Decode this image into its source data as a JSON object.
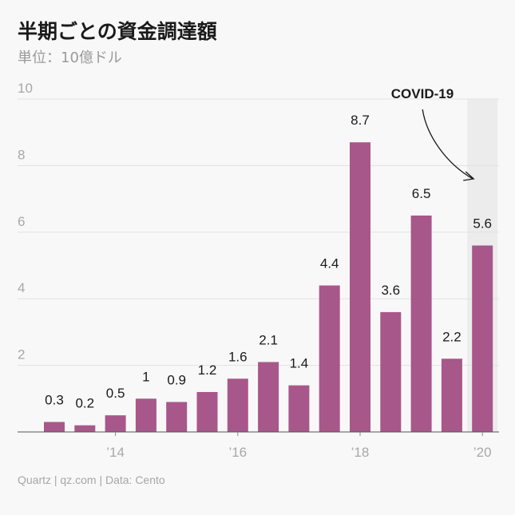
{
  "chart_data": {
    "type": "bar",
    "title": "半期ごとの資金調達額",
    "subtitle": "単位：10億ドル",
    "source": "Quartz | qz.com | Data: Cento",
    "ylim": [
      0,
      10
    ],
    "yticks": [
      2,
      4,
      6,
      8,
      10
    ],
    "grid": true,
    "values": [
      0.3,
      0.2,
      0.5,
      1.0,
      0.9,
      1.2,
      1.6,
      2.1,
      1.4,
      4.4,
      8.7,
      3.6,
      6.5,
      2.2,
      5.6
    ],
    "data_labels": [
      "0.3",
      "0.2",
      "0.5",
      "1",
      "0.9",
      "1.2",
      "1.6",
      "2.1",
      "1.4",
      "4.4",
      "8.7",
      "3.6",
      "6.5",
      "2.2",
      "5.6"
    ],
    "x_tick_labels": [
      {
        "bar_index": 2,
        "label": "’14"
      },
      {
        "bar_index": 6,
        "label": "’16"
      },
      {
        "bar_index": 10,
        "label": "’18"
      },
      {
        "bar_index": 14,
        "label": "’20"
      }
    ],
    "bar_color": "#a8578a",
    "highlight": {
      "bar_index": 14,
      "label": "COVID-19",
      "color": "#ececec"
    }
  }
}
